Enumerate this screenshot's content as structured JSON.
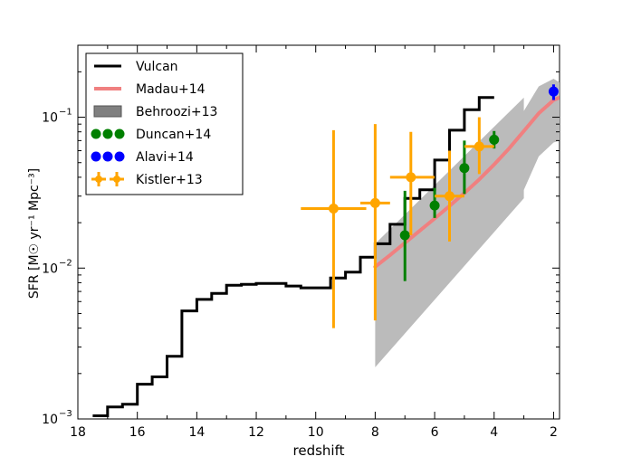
{
  "chart_data": {
    "type": "line",
    "title": "",
    "xlabel": "redshift",
    "ylabel": "SFR [M☉ yr⁻¹ Mpc⁻³]",
    "xlim": [
      18,
      1.8
    ],
    "ylim": [
      0.001,
      0.3
    ],
    "yscale": "log",
    "xticks": [
      18,
      16,
      14,
      12,
      10,
      8,
      6,
      4,
      2
    ],
    "xtick_labels": [
      "18",
      "16",
      "14",
      "12",
      "10",
      "8",
      "6",
      "4",
      "2"
    ],
    "yticks": [
      0.001,
      0.01,
      0.1
    ],
    "ytick_labels": [
      {
        "base": "10",
        "exp": "−3"
      },
      {
        "base": "10",
        "exp": "−2"
      },
      {
        "base": "10",
        "exp": "−1"
      }
    ],
    "legend": {
      "position": "top-left",
      "entries": [
        {
          "label": "Vulcan",
          "key": "vulcan"
        },
        {
          "label": "Madau+14",
          "key": "madau"
        },
        {
          "label": "Behroozi+13",
          "key": "behroozi"
        },
        {
          "label": "Duncan+14",
          "key": "duncan"
        },
        {
          "label": "Alavi+14",
          "key": "alavi"
        },
        {
          "label": "Kistler+13",
          "key": "kistler"
        }
      ]
    },
    "series": [
      {
        "name": "Vulcan",
        "key": "vulcan",
        "kind": "step",
        "color": "#000000",
        "x": [
          17.5,
          17.0,
          16.5,
          16.0,
          15.5,
          15.0,
          14.5,
          14.0,
          13.5,
          13.0,
          12.5,
          12.0,
          11.5,
          11.0,
          10.5,
          10.0,
          9.5,
          9.0,
          8.5,
          8.0,
          7.5,
          7.0,
          6.5,
          6.0,
          5.5,
          5.0,
          4.5
        ],
        "y": [
          0.00105,
          0.0012,
          0.00125,
          0.0017,
          0.0019,
          0.0026,
          0.0052,
          0.0062,
          0.0068,
          0.0077,
          0.0078,
          0.0079,
          0.0079,
          0.0076,
          0.0074,
          0.0074,
          0.0086,
          0.0094,
          0.0118,
          0.0145,
          0.0195,
          0.029,
          0.033,
          0.052,
          0.082,
          0.112,
          0.135
        ]
      },
      {
        "name": "Madau+14",
        "key": "madau",
        "kind": "line",
        "color": "#f08080",
        "x": [
          8.0,
          7.5,
          7.0,
          6.5,
          6.0,
          5.5,
          5.0,
          4.5,
          4.0,
          3.5,
          3.0,
          2.5,
          2.0,
          1.8
        ],
        "y": [
          0.0102,
          0.0122,
          0.0147,
          0.0177,
          0.0213,
          0.0258,
          0.0314,
          0.0387,
          0.0486,
          0.062,
          0.081,
          0.106,
          0.13,
          0.135
        ]
      },
      {
        "name": "Behroozi+13",
        "key": "behroozi",
        "kind": "band",
        "color": "#bbbbbb",
        "x": [
          8.0,
          3.0,
          3.0,
          2.5,
          2.0,
          1.8
        ],
        "upper": [
          0.0145,
          0.135,
          0.11,
          0.16,
          0.18,
          0.17
        ],
        "lower": [
          0.0022,
          0.029,
          0.033,
          0.055,
          0.068,
          0.07
        ]
      },
      {
        "name": "Duncan+14",
        "key": "duncan",
        "kind": "errorbar",
        "color": "#008000",
        "points": [
          {
            "x": 7.0,
            "y": 0.0165,
            "ylo": 0.0082,
            "yhi": 0.0325
          },
          {
            "x": 6.0,
            "y": 0.026,
            "ylo": 0.0215,
            "yhi": 0.034
          },
          {
            "x": 5.0,
            "y": 0.046,
            "ylo": 0.031,
            "yhi": 0.07
          },
          {
            "x": 4.0,
            "y": 0.071,
            "ylo": 0.062,
            "yhi": 0.081
          }
        ]
      },
      {
        "name": "Alavi+14",
        "key": "alavi",
        "kind": "errorbar",
        "color": "#0000ff",
        "points": [
          {
            "x": 2.0,
            "y": 0.148,
            "ylo": 0.13,
            "yhi": 0.165
          }
        ]
      },
      {
        "name": "Kistler+13",
        "key": "kistler",
        "kind": "errorbar",
        "color": "#ffa500",
        "points": [
          {
            "x": 9.4,
            "y": 0.0248,
            "xlo": 10.5,
            "xhi": 8.3,
            "ylo": 0.004,
            "yhi": 0.082
          },
          {
            "x": 8.0,
            "y": 0.027,
            "xlo": 8.5,
            "xhi": 7.5,
            "ylo": 0.0045,
            "yhi": 0.09
          },
          {
            "x": 6.8,
            "y": 0.04,
            "xlo": 7.5,
            "xhi": 6.0,
            "ylo": 0.0165,
            "yhi": 0.08
          },
          {
            "x": 5.5,
            "y": 0.03,
            "xlo": 6.0,
            "xhi": 5.0,
            "ylo": 0.015,
            "yhi": 0.06
          },
          {
            "x": 4.5,
            "y": 0.064,
            "xlo": 5.0,
            "xhi": 4.0,
            "ylo": 0.042,
            "yhi": 0.1
          }
        ]
      }
    ]
  }
}
